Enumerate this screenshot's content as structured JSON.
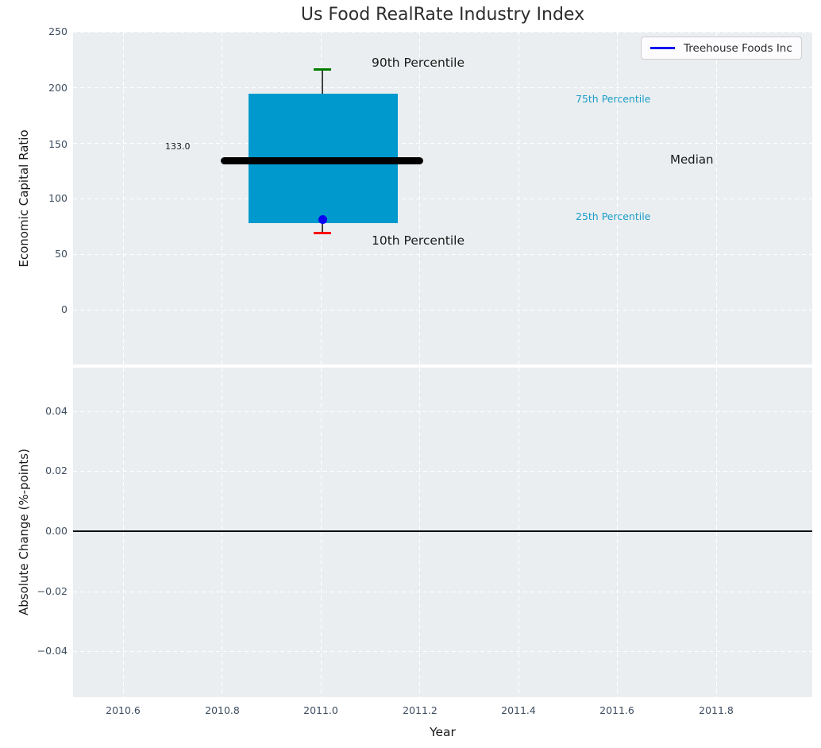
{
  "title": "Us Food RealRate Industry Index",
  "legend": {
    "label": "Treehouse Foods Inc",
    "line_color": "#0b00f0"
  },
  "top_axes": {
    "ylabel": "Economic Capital Ratio",
    "yticks": [
      "250",
      "200",
      "150",
      "100",
      "50",
      "0"
    ],
    "annotations": {
      "median_value_label": "133.0",
      "p90_label": "90th Percentile",
      "p10_label": "10th Percentile",
      "p75_label": "75th Percentile",
      "p25_label": "25th Percentile",
      "median_label": "Median"
    }
  },
  "bottom_axes": {
    "ylabel": "Absolute Change (%-points)",
    "yticks": [
      "0.04",
      "0.02",
      "0.00",
      "−0.02",
      "−0.04"
    ]
  },
  "xaxis": {
    "label": "Year",
    "ticks": [
      "2010.6",
      "2010.8",
      "2011.0",
      "2011.2",
      "2011.4",
      "2011.6",
      "2011.8"
    ]
  },
  "colors": {
    "plot_background": "#ebeef0",
    "gridline": "#ffffff",
    "box_fill": "#0099cd",
    "median_line": "#000000",
    "p90_cap": "#007d00",
    "p10_cap": "#fb0007",
    "company_marker": "#0b00f0",
    "percentile_text": "#1b9ec9",
    "tick_text": "#3d4d5f"
  },
  "chart_data": [
    {
      "type": "boxplot",
      "title": "Us Food RealRate Industry Index",
      "ylabel": "Economic Capital Ratio",
      "xlim": [
        2010.5,
        2012.0
      ],
      "ylim": [
        -49,
        250
      ],
      "yticks": [
        0,
        50,
        100,
        150,
        200,
        250
      ],
      "xticks": [
        2010.6,
        2010.8,
        2011.0,
        2011.2,
        2011.4,
        2011.6,
        2011.8
      ],
      "grid": true,
      "legend_position": "upper right",
      "series": [
        {
          "name": "industry-distribution-box",
          "x": 2011.0,
          "p10": 68,
          "p25": 78,
          "median": 133.0,
          "p75": 193,
          "p90": 215,
          "box_x_span": [
            2010.85,
            2011.15
          ],
          "median_x_span": [
            2010.8,
            2011.2
          ]
        },
        {
          "name": "Treehouse Foods Inc",
          "type": "scatter",
          "x": [
            2011.0
          ],
          "y": [
            80
          ]
        }
      ],
      "annotations": [
        {
          "text": "133.0",
          "x": 2010.72,
          "y": 140
        },
        {
          "text": "90th Percentile",
          "x": 2011.06,
          "y": 222
        },
        {
          "text": "10th Percentile",
          "x": 2011.06,
          "y": 58
        },
        {
          "text": "75th Percentile",
          "x": 2011.47,
          "y": 186
        },
        {
          "text": "25th Percentile",
          "x": 2011.47,
          "y": 80
        },
        {
          "text": "Median",
          "x": 2011.66,
          "y": 133
        }
      ]
    },
    {
      "type": "line",
      "xlabel": "Year",
      "ylabel": "Absolute Change (%-points)",
      "xlim": [
        2010.5,
        2012.0
      ],
      "ylim": [
        -0.055,
        0.055
      ],
      "yticks": [
        -0.04,
        -0.02,
        0.0,
        0.02,
        0.04
      ],
      "xticks": [
        2010.6,
        2010.8,
        2011.0,
        2011.2,
        2011.4,
        2011.6,
        2011.8
      ],
      "grid": true,
      "series": [],
      "zero_line_y": 0.0
    }
  ]
}
